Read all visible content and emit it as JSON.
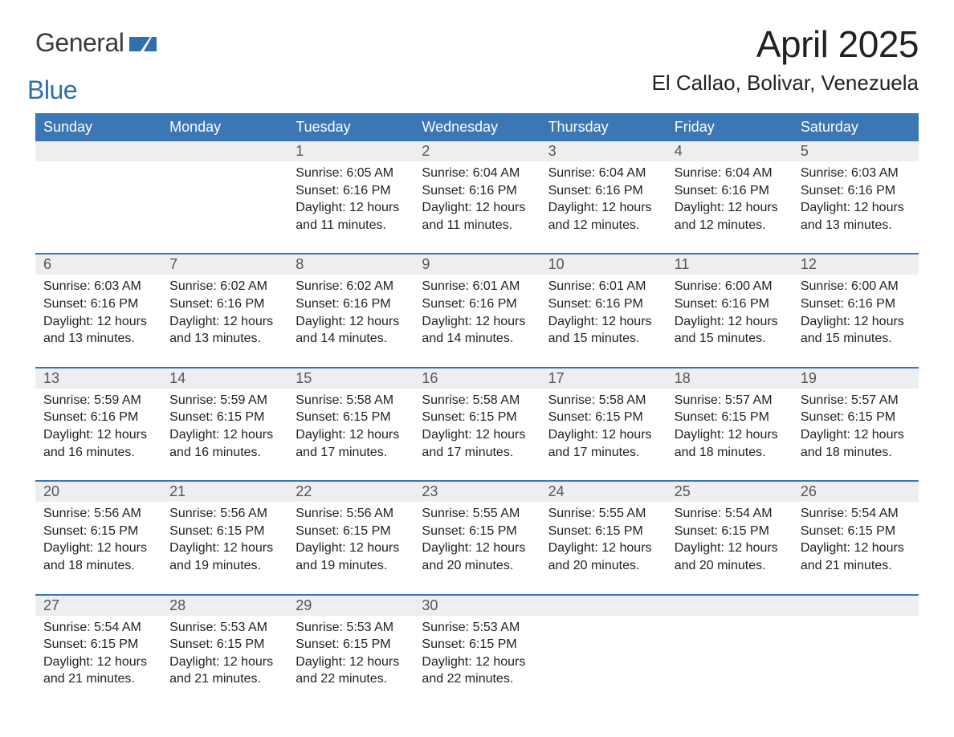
{
  "brand": {
    "part1": "General",
    "part2": "Blue",
    "logo_color": "#2f6fad"
  },
  "title": "April 2025",
  "subtitle": "El Callao, Bolivar, Venezuela",
  "colors": {
    "header_bg": "#3b77b4",
    "header_fg": "#ffffff",
    "strip_bg": "#eceef0",
    "rule": "#3b77b4",
    "text": "#222222",
    "muted": "#555555",
    "page_bg": "#ffffff"
  },
  "typography": {
    "title_fontsize": 46,
    "subtitle_fontsize": 26,
    "header_fontsize": 18,
    "daynum_fontsize": 18,
    "body_fontsize": 16
  },
  "day_headers": [
    "Sunday",
    "Monday",
    "Tuesday",
    "Wednesday",
    "Thursday",
    "Friday",
    "Saturday"
  ],
  "weeks": [
    [
      {
        "n": "",
        "sunrise": "",
        "sunset": "",
        "daylight1": "",
        "daylight2": ""
      },
      {
        "n": "",
        "sunrise": "",
        "sunset": "",
        "daylight1": "",
        "daylight2": ""
      },
      {
        "n": "1",
        "sunrise": "Sunrise: 6:05 AM",
        "sunset": "Sunset: 6:16 PM",
        "daylight1": "Daylight: 12 hours",
        "daylight2": "and 11 minutes."
      },
      {
        "n": "2",
        "sunrise": "Sunrise: 6:04 AM",
        "sunset": "Sunset: 6:16 PM",
        "daylight1": "Daylight: 12 hours",
        "daylight2": "and 11 minutes."
      },
      {
        "n": "3",
        "sunrise": "Sunrise: 6:04 AM",
        "sunset": "Sunset: 6:16 PM",
        "daylight1": "Daylight: 12 hours",
        "daylight2": "and 12 minutes."
      },
      {
        "n": "4",
        "sunrise": "Sunrise: 6:04 AM",
        "sunset": "Sunset: 6:16 PM",
        "daylight1": "Daylight: 12 hours",
        "daylight2": "and 12 minutes."
      },
      {
        "n": "5",
        "sunrise": "Sunrise: 6:03 AM",
        "sunset": "Sunset: 6:16 PM",
        "daylight1": "Daylight: 12 hours",
        "daylight2": "and 13 minutes."
      }
    ],
    [
      {
        "n": "6",
        "sunrise": "Sunrise: 6:03 AM",
        "sunset": "Sunset: 6:16 PM",
        "daylight1": "Daylight: 12 hours",
        "daylight2": "and 13 minutes."
      },
      {
        "n": "7",
        "sunrise": "Sunrise: 6:02 AM",
        "sunset": "Sunset: 6:16 PM",
        "daylight1": "Daylight: 12 hours",
        "daylight2": "and 13 minutes."
      },
      {
        "n": "8",
        "sunrise": "Sunrise: 6:02 AM",
        "sunset": "Sunset: 6:16 PM",
        "daylight1": "Daylight: 12 hours",
        "daylight2": "and 14 minutes."
      },
      {
        "n": "9",
        "sunrise": "Sunrise: 6:01 AM",
        "sunset": "Sunset: 6:16 PM",
        "daylight1": "Daylight: 12 hours",
        "daylight2": "and 14 minutes."
      },
      {
        "n": "10",
        "sunrise": "Sunrise: 6:01 AM",
        "sunset": "Sunset: 6:16 PM",
        "daylight1": "Daylight: 12 hours",
        "daylight2": "and 15 minutes."
      },
      {
        "n": "11",
        "sunrise": "Sunrise: 6:00 AM",
        "sunset": "Sunset: 6:16 PM",
        "daylight1": "Daylight: 12 hours",
        "daylight2": "and 15 minutes."
      },
      {
        "n": "12",
        "sunrise": "Sunrise: 6:00 AM",
        "sunset": "Sunset: 6:16 PM",
        "daylight1": "Daylight: 12 hours",
        "daylight2": "and 15 minutes."
      }
    ],
    [
      {
        "n": "13",
        "sunrise": "Sunrise: 5:59 AM",
        "sunset": "Sunset: 6:16 PM",
        "daylight1": "Daylight: 12 hours",
        "daylight2": "and 16 minutes."
      },
      {
        "n": "14",
        "sunrise": "Sunrise: 5:59 AM",
        "sunset": "Sunset: 6:15 PM",
        "daylight1": "Daylight: 12 hours",
        "daylight2": "and 16 minutes."
      },
      {
        "n": "15",
        "sunrise": "Sunrise: 5:58 AM",
        "sunset": "Sunset: 6:15 PM",
        "daylight1": "Daylight: 12 hours",
        "daylight2": "and 17 minutes."
      },
      {
        "n": "16",
        "sunrise": "Sunrise: 5:58 AM",
        "sunset": "Sunset: 6:15 PM",
        "daylight1": "Daylight: 12 hours",
        "daylight2": "and 17 minutes."
      },
      {
        "n": "17",
        "sunrise": "Sunrise: 5:58 AM",
        "sunset": "Sunset: 6:15 PM",
        "daylight1": "Daylight: 12 hours",
        "daylight2": "and 17 minutes."
      },
      {
        "n": "18",
        "sunrise": "Sunrise: 5:57 AM",
        "sunset": "Sunset: 6:15 PM",
        "daylight1": "Daylight: 12 hours",
        "daylight2": "and 18 minutes."
      },
      {
        "n": "19",
        "sunrise": "Sunrise: 5:57 AM",
        "sunset": "Sunset: 6:15 PM",
        "daylight1": "Daylight: 12 hours",
        "daylight2": "and 18 minutes."
      }
    ],
    [
      {
        "n": "20",
        "sunrise": "Sunrise: 5:56 AM",
        "sunset": "Sunset: 6:15 PM",
        "daylight1": "Daylight: 12 hours",
        "daylight2": "and 18 minutes."
      },
      {
        "n": "21",
        "sunrise": "Sunrise: 5:56 AM",
        "sunset": "Sunset: 6:15 PM",
        "daylight1": "Daylight: 12 hours",
        "daylight2": "and 19 minutes."
      },
      {
        "n": "22",
        "sunrise": "Sunrise: 5:56 AM",
        "sunset": "Sunset: 6:15 PM",
        "daylight1": "Daylight: 12 hours",
        "daylight2": "and 19 minutes."
      },
      {
        "n": "23",
        "sunrise": "Sunrise: 5:55 AM",
        "sunset": "Sunset: 6:15 PM",
        "daylight1": "Daylight: 12 hours",
        "daylight2": "and 20 minutes."
      },
      {
        "n": "24",
        "sunrise": "Sunrise: 5:55 AM",
        "sunset": "Sunset: 6:15 PM",
        "daylight1": "Daylight: 12 hours",
        "daylight2": "and 20 minutes."
      },
      {
        "n": "25",
        "sunrise": "Sunrise: 5:54 AM",
        "sunset": "Sunset: 6:15 PM",
        "daylight1": "Daylight: 12 hours",
        "daylight2": "and 20 minutes."
      },
      {
        "n": "26",
        "sunrise": "Sunrise: 5:54 AM",
        "sunset": "Sunset: 6:15 PM",
        "daylight1": "Daylight: 12 hours",
        "daylight2": "and 21 minutes."
      }
    ],
    [
      {
        "n": "27",
        "sunrise": "Sunrise: 5:54 AM",
        "sunset": "Sunset: 6:15 PM",
        "daylight1": "Daylight: 12 hours",
        "daylight2": "and 21 minutes."
      },
      {
        "n": "28",
        "sunrise": "Sunrise: 5:53 AM",
        "sunset": "Sunset: 6:15 PM",
        "daylight1": "Daylight: 12 hours",
        "daylight2": "and 21 minutes."
      },
      {
        "n": "29",
        "sunrise": "Sunrise: 5:53 AM",
        "sunset": "Sunset: 6:15 PM",
        "daylight1": "Daylight: 12 hours",
        "daylight2": "and 22 minutes."
      },
      {
        "n": "30",
        "sunrise": "Sunrise: 5:53 AM",
        "sunset": "Sunset: 6:15 PM",
        "daylight1": "Daylight: 12 hours",
        "daylight2": "and 22 minutes."
      },
      {
        "n": "",
        "sunrise": "",
        "sunset": "",
        "daylight1": "",
        "daylight2": ""
      },
      {
        "n": "",
        "sunrise": "",
        "sunset": "",
        "daylight1": "",
        "daylight2": ""
      },
      {
        "n": "",
        "sunrise": "",
        "sunset": "",
        "daylight1": "",
        "daylight2": ""
      }
    ]
  ]
}
